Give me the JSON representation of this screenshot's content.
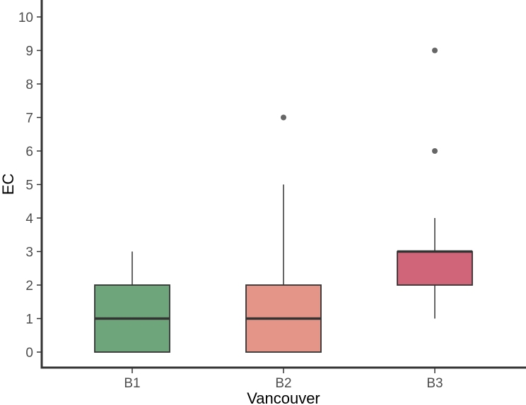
{
  "chart_data": {
    "type": "box",
    "title": "",
    "xlabel": "Vancouver",
    "ylabel": "EC",
    "ylim": [
      0,
      10
    ],
    "yticks": [
      0,
      1,
      2,
      3,
      4,
      5,
      6,
      7,
      8,
      9,
      10
    ],
    "categories": [
      "B1",
      "B2",
      "B3"
    ],
    "boxes": [
      {
        "category": "B1",
        "whisker_low": 0,
        "q1": 0,
        "median": 1,
        "q3": 2,
        "whisker_high": 3,
        "outliers": [],
        "color": "#6fa57a"
      },
      {
        "category": "B2",
        "whisker_low": 0,
        "q1": 0,
        "median": 1,
        "q3": 2,
        "whisker_high": 5,
        "outliers": [
          7
        ],
        "color": "#e59488"
      },
      {
        "category": "B3",
        "whisker_low": 1,
        "q1": 2,
        "median": 3,
        "q3": 3,
        "whisker_high": 4,
        "outliers": [
          6,
          9
        ],
        "color": "#d06478"
      }
    ],
    "grid": false,
    "legend": "none"
  }
}
